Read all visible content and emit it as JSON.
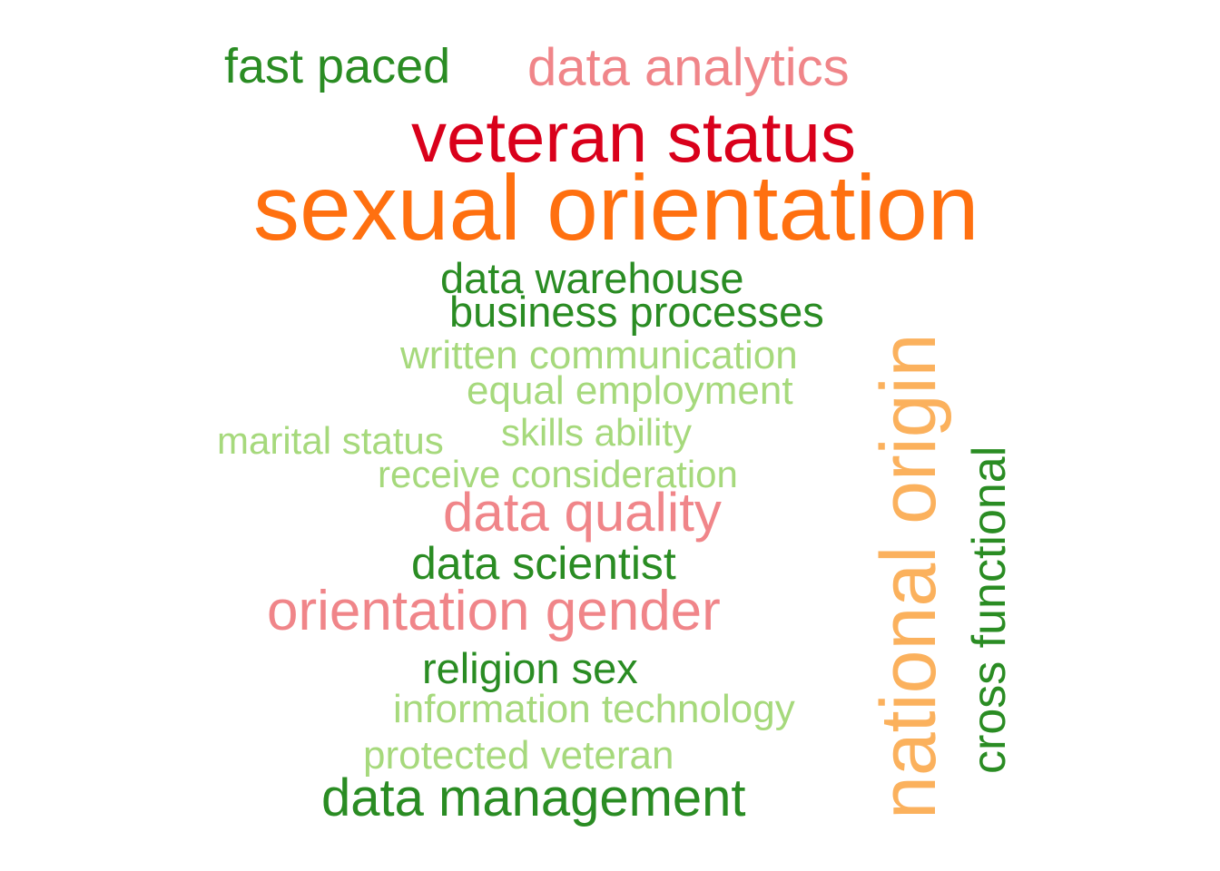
{
  "colors": {
    "dark_green": "#2a8c23",
    "light_green": "#a6d97c",
    "pink": "#f08589",
    "red": "#d9001b",
    "orange": "#ff7010",
    "light_orange": "#fbb15d",
    "background": "#ffffff"
  },
  "words": [
    {
      "text": "fast paced",
      "color": "dark_green"
    },
    {
      "text": "data analytics",
      "color": "pink"
    },
    {
      "text": "veteran status",
      "color": "red"
    },
    {
      "text": "sexual orientation",
      "color": "orange"
    },
    {
      "text": "data warehouse",
      "color": "dark_green"
    },
    {
      "text": "business processes",
      "color": "dark_green"
    },
    {
      "text": "written communication",
      "color": "light_green"
    },
    {
      "text": "equal employment",
      "color": "light_green"
    },
    {
      "text": "marital status",
      "color": "light_green"
    },
    {
      "text": "skills ability",
      "color": "light_green"
    },
    {
      "text": "receive consideration",
      "color": "light_green"
    },
    {
      "text": "data quality",
      "color": "pink"
    },
    {
      "text": "data scientist",
      "color": "dark_green"
    },
    {
      "text": "orientation gender",
      "color": "pink"
    },
    {
      "text": "religion sex",
      "color": "dark_green"
    },
    {
      "text": "information technology",
      "color": "light_green"
    },
    {
      "text": "protected veteran",
      "color": "light_green"
    },
    {
      "text": "data management",
      "color": "dark_green"
    },
    {
      "text": "national origin",
      "color": "light_orange"
    },
    {
      "text": "cross functional",
      "color": "dark_green"
    }
  ]
}
